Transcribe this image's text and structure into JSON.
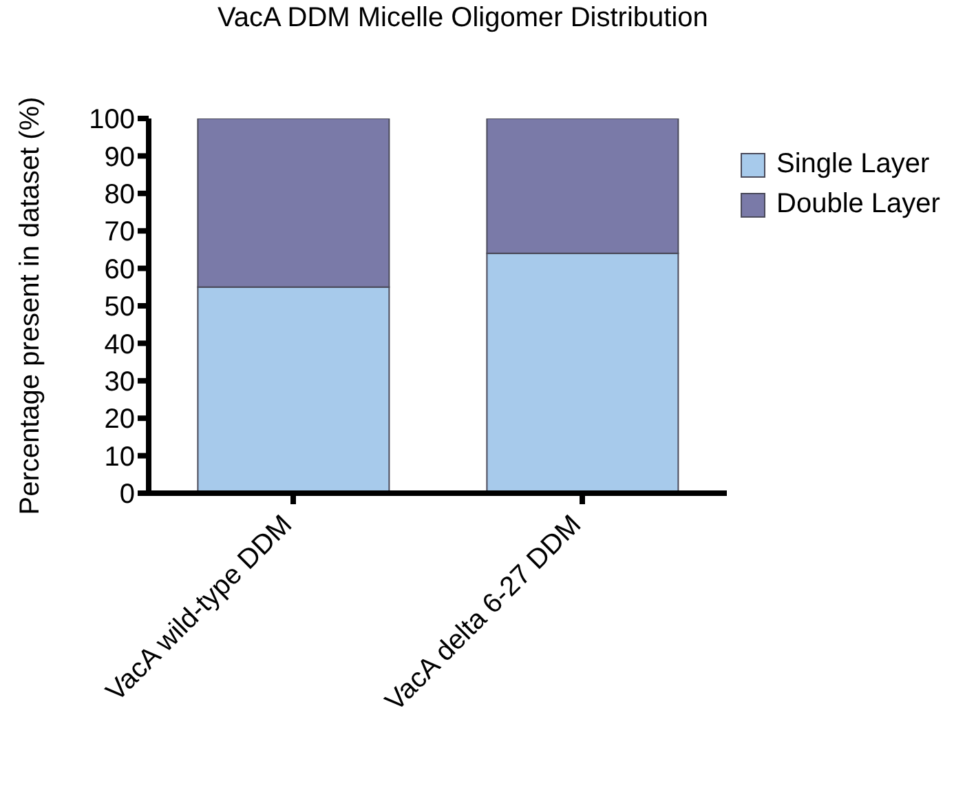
{
  "chart_data": {
    "type": "bar",
    "title": "VacA DDM Micelle Oligomer Distribution",
    "ylabel": "Percentage present in dataset (%)",
    "categories": [
      "VacA wild-type DDM",
      "VacA delta 6-27 DDM"
    ],
    "stacked": true,
    "series": [
      {
        "name": "Single Layer",
        "color": "#a7caeb",
        "values": [
          55,
          64
        ]
      },
      {
        "name": "Double Layer",
        "color": "#7a7aa8",
        "values": [
          45,
          36
        ]
      }
    ],
    "ylim": [
      0,
      100
    ],
    "yticks": [
      0,
      10,
      20,
      30,
      40,
      50,
      60,
      70,
      80,
      90,
      100
    ],
    "grid": false,
    "legend": "top right"
  }
}
